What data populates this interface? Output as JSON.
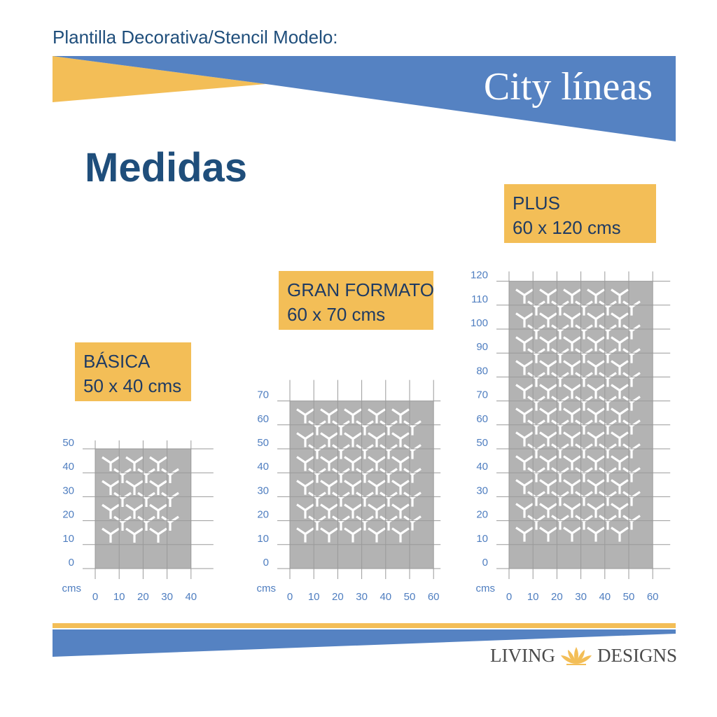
{
  "header": {
    "subtitle": "Plantilla Decorativa/Stencil Modelo:",
    "product_name": "City líneas"
  },
  "section_title": "Medidas",
  "colors": {
    "blue": "#5582c2",
    "navy": "#1f4e7b",
    "yellow": "#f3be57",
    "stencil_gray": "#b3b3b3",
    "axis_label": "#4f7ec0"
  },
  "unit_label": "cms",
  "sizes": [
    {
      "name": "BÁSICA",
      "dims": "50 x 40 cms",
      "width_cm": 40,
      "height_cm": 50,
      "x_ticks": [
        "0",
        "10",
        "20",
        "30",
        "40"
      ],
      "y_ticks": [
        "0",
        "10",
        "20",
        "30",
        "40",
        "50"
      ]
    },
    {
      "name": "GRAN FORMATO",
      "dims": "60 x 70 cms",
      "width_cm": 60,
      "height_cm": 70,
      "x_ticks": [
        "0",
        "10",
        "20",
        "30",
        "40",
        "50",
        "60"
      ],
      "y_ticks": [
        "0",
        "10",
        "20",
        "30",
        "40",
        "50",
        "60",
        "70"
      ]
    },
    {
      "name": "PLUS",
      "dims": "60 x 120 cms",
      "width_cm": 60,
      "height_cm": 120,
      "x_ticks": [
        "0",
        "10",
        "20",
        "30",
        "40",
        "50",
        "60"
      ],
      "y_ticks": [
        "0",
        "10",
        "20",
        "30",
        "40",
        "50",
        "60",
        "70",
        "80",
        "90",
        "100",
        "110",
        "120"
      ]
    }
  ],
  "logo": {
    "left": "LIVING",
    "right": "DESIGNS",
    "icon": "lotus-icon"
  }
}
